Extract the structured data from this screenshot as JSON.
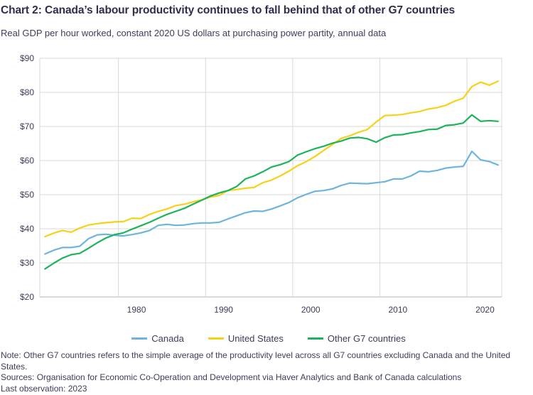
{
  "header": {
    "title": "Chart 2: Canada’s labour productivity continues to fall behind that of other G7 countries",
    "subtitle": "Real GDP per hour worked, constant 2020 US dollars at purchasing power partity, annual data"
  },
  "footer": {
    "note": "Note: Other G7 countries refers to the simple average of the productivity level across all G7 countries excluding Canada and the United States.",
    "sources": "Sources: Organisation for Economic Co-Operation and Development via Haver Analytics and Bank of Canada calculations",
    "last_observation": "Last observation: 2023"
  },
  "chart_data": {
    "type": "line",
    "title": "Chart 2: Canada’s labour productivity continues to fall behind that of other G7 countries",
    "subtitle": "Real GDP per hour worked, constant 2020 US dollars at purchasing power partity, annual data",
    "xlabel": "",
    "ylabel": "",
    "ylim": [
      20,
      90
    ],
    "xlim": [
      1971,
      2023
    ],
    "y_ticks": [
      20,
      30,
      40,
      50,
      60,
      70,
      80,
      90
    ],
    "y_tick_labels": [
      "$20",
      "$30",
      "$40",
      "$50",
      "$60",
      "$70",
      "$80",
      "$90"
    ],
    "x_ticks": [
      1980,
      1990,
      2000,
      2010,
      2020
    ],
    "x_tick_labels": [
      "1980",
      "1990",
      "2000",
      "2010",
      "2020"
    ],
    "grid": true,
    "legend_position": "bottom",
    "x": [
      1971,
      1972,
      1973,
      1974,
      1975,
      1976,
      1977,
      1978,
      1979,
      1980,
      1981,
      1982,
      1983,
      1984,
      1985,
      1986,
      1987,
      1988,
      1989,
      1990,
      1991,
      1992,
      1993,
      1994,
      1995,
      1996,
      1997,
      1998,
      1999,
      2000,
      2001,
      2002,
      2003,
      2004,
      2005,
      2006,
      2007,
      2008,
      2009,
      2010,
      2011,
      2012,
      2013,
      2014,
      2015,
      2016,
      2017,
      2018,
      2019,
      2020,
      2021,
      2022,
      2023
    ],
    "series": [
      {
        "name": "Canada",
        "color": "#6bb6dc",
        "values": [
          32.6,
          33.7,
          34.5,
          34.5,
          34.9,
          37.1,
          38.2,
          38.4,
          38.1,
          37.9,
          38.3,
          38.8,
          39.5,
          41.0,
          41.3,
          41.0,
          41.1,
          41.5,
          41.7,
          41.7,
          41.9,
          42.9,
          43.8,
          44.7,
          45.2,
          45.1,
          45.8,
          46.7,
          47.7,
          49.1,
          50.1,
          51.0,
          51.2,
          51.7,
          52.7,
          53.4,
          53.3,
          53.2,
          53.5,
          53.8,
          54.6,
          54.6,
          55.5,
          56.9,
          56.7,
          57.1,
          57.8,
          58.1,
          58.3,
          62.7,
          60.2,
          59.7,
          58.7
        ]
      },
      {
        "name": "United States",
        "color": "#f7d117",
        "values": [
          37.7,
          38.7,
          39.5,
          39.0,
          40.2,
          41.1,
          41.5,
          41.8,
          42.0,
          42.1,
          43.1,
          43.0,
          44.2,
          45.1,
          45.8,
          46.8,
          47.2,
          47.9,
          48.5,
          49.3,
          49.8,
          51.2,
          51.5,
          51.9,
          52.1,
          53.5,
          54.3,
          55.5,
          56.9,
          58.5,
          59.7,
          61.2,
          63.0,
          64.7,
          66.5,
          67.3,
          68.3,
          69.1,
          71.3,
          73.2,
          73.3,
          73.5,
          74.0,
          74.4,
          75.1,
          75.5,
          76.2,
          77.4,
          78.3,
          81.7,
          83.0,
          82.1,
          83.3
        ]
      },
      {
        "name": "Other G7 countries",
        "color": "#1db35b",
        "values": [
          28.2,
          29.9,
          31.4,
          32.4,
          32.8,
          34.3,
          35.9,
          37.3,
          38.3,
          38.8,
          39.9,
          40.9,
          41.9,
          43.1,
          44.2,
          45.1,
          46.0,
          47.2,
          48.4,
          49.6,
          50.5,
          51.2,
          52.4,
          54.6,
          55.5,
          56.7,
          58.1,
          58.8,
          59.7,
          61.6,
          62.6,
          63.5,
          64.2,
          65.1,
          65.7,
          66.6,
          66.8,
          66.4,
          65.4,
          66.7,
          67.5,
          67.6,
          68.1,
          68.5,
          69.1,
          69.2,
          70.3,
          70.5,
          71.0,
          73.4,
          71.5,
          71.7,
          71.5
        ]
      }
    ]
  }
}
